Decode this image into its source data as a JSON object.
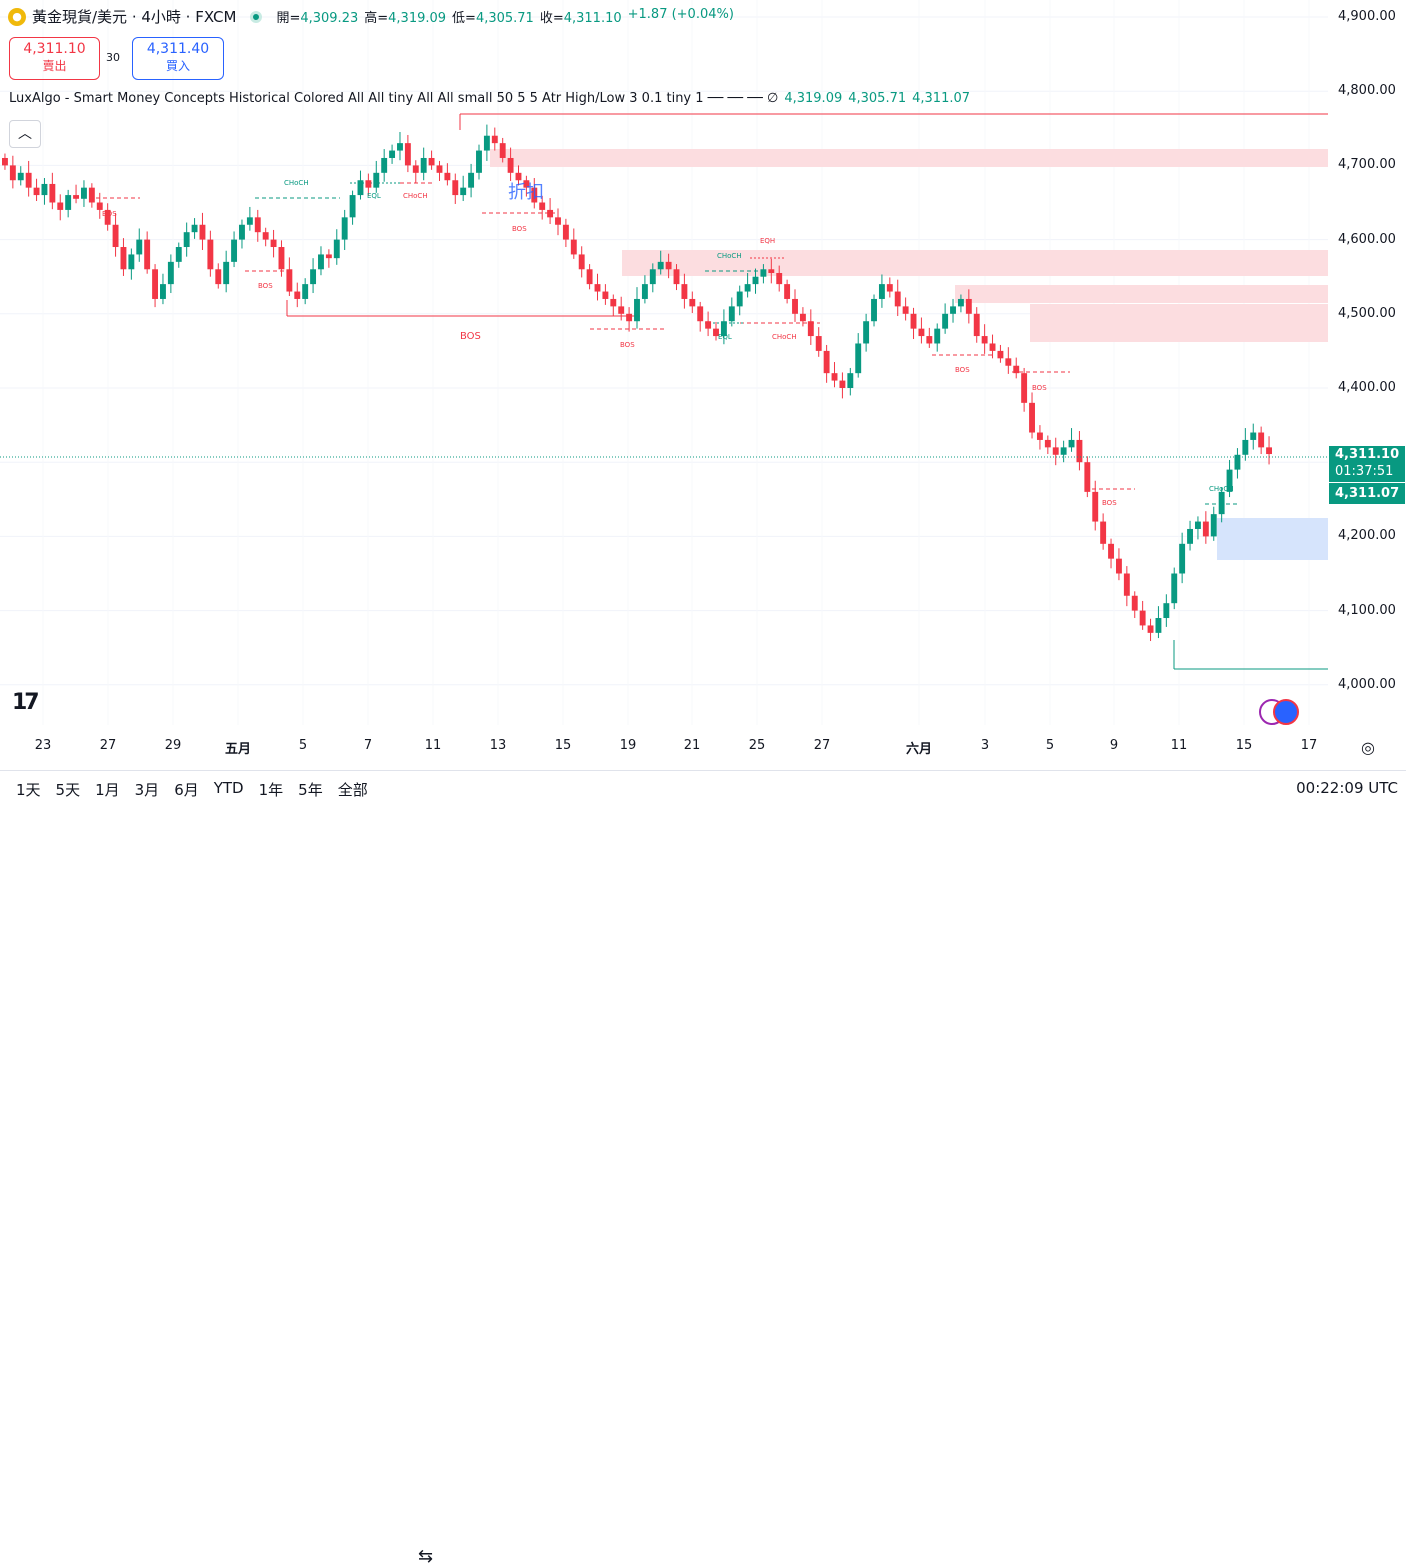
{
  "header": {
    "symbol": "黃金現貨/美元 · 4小時 · FXCM",
    "open_label": "開=",
    "open": "4,309.23",
    "high_label": "高=",
    "high": "4,319.09",
    "low_label": "低=",
    "low": "4,305.71",
    "close_label": "收=",
    "close": "4,311.10",
    "change": "+1.87 (+0.04%)"
  },
  "trade": {
    "sell_price": "4,311.10",
    "sell_label": "賣出",
    "spread": "30",
    "buy_price": "4,311.40",
    "buy_label": "買入"
  },
  "indicator": {
    "name": "LuxAlgo - Smart Money Concepts Historical Colored All All tiny All All small 50 5 5 Atr High/Low 3 0.1 tiny 1 ── ── ──  ∅",
    "v1": "4,319.09",
    "v2": "4,305.71",
    "v3": "4,311.07"
  },
  "price_axis": [
    "4,900.00",
    "4,800.00",
    "4,700.00",
    "4,600.00",
    "4,500.00",
    "4,400.00",
    "4,300.00",
    "4,200.00",
    "4,100.00",
    "4,000.00"
  ],
  "price_tags": {
    "last": "4,311.10",
    "countdown": "01:37:51",
    "indicator_last": "4,311.07"
  },
  "time_axis": [
    "23",
    "27",
    "29",
    "五月",
    "5",
    "7",
    "11",
    "13",
    "15",
    "19",
    "21",
    "25",
    "27",
    "六月",
    "3",
    "5",
    "9",
    "11",
    "15",
    "17"
  ],
  "chart_labels": {
    "bos": "BOS",
    "choch": "CHoCH",
    "eql": "EQL",
    "eqh": "EQH",
    "annotation": "折扣"
  },
  "ranges": [
    "1天",
    "5天",
    "1月",
    "3月",
    "6月",
    "YTD",
    "1年",
    "5年",
    "全部"
  ],
  "clock": "00:22:09 UTC",
  "colors": {
    "up": "#089981",
    "down": "#f23645",
    "supply_zone": "#fcdde0",
    "demand_zone": "#d6e4fc"
  },
  "chart_data": {
    "type": "candlestick",
    "ylim": [
      3950,
      4950
    ],
    "closes": [
      4700,
      4680,
      4690,
      4670,
      4660,
      4675,
      4650,
      4640,
      4660,
      4655,
      4670,
      4650,
      4640,
      4620,
      4590,
      4560,
      4580,
      4600,
      4560,
      4520,
      4540,
      4570,
      4590,
      4610,
      4620,
      4600,
      4560,
      4540,
      4570,
      4600,
      4620,
      4630,
      4610,
      4600,
      4590,
      4560,
      4530,
      4520,
      4540,
      4560,
      4580,
      4575,
      4600,
      4630,
      4660,
      4680,
      4670,
      4690,
      4710,
      4720,
      4730,
      4700,
      4690,
      4710,
      4700,
      4690,
      4680,
      4660,
      4670,
      4690,
      4720,
      4740,
      4730,
      4710,
      4690,
      4680,
      4670,
      4650,
      4640,
      4630,
      4620,
      4600,
      4580,
      4560,
      4540,
      4530,
      4520,
      4510,
      4500,
      4490,
      4520,
      4540,
      4560,
      4570,
      4560,
      4540,
      4520,
      4510,
      4490,
      4480,
      4470,
      4490,
      4510,
      4530,
      4540,
      4550,
      4560,
      4555,
      4540,
      4520,
      4500,
      4490,
      4470,
      4450,
      4420,
      4410,
      4400,
      4420,
      4460,
      4490,
      4520,
      4540,
      4530,
      4510,
      4500,
      4480,
      4470,
      4460,
      4480,
      4500,
      4510,
      4520,
      4500,
      4470,
      4460,
      4450,
      4440,
      4430,
      4420,
      4380,
      4340,
      4330,
      4320,
      4310,
      4320,
      4330,
      4300,
      4260,
      4220,
      4190,
      4170,
      4150,
      4120,
      4100,
      4080,
      4070,
      4090,
      4110,
      4150,
      4190,
      4210,
      4220,
      4200,
      4230,
      4260,
      4290,
      4310,
      4330,
      4340,
      4320,
      4311
    ]
  }
}
